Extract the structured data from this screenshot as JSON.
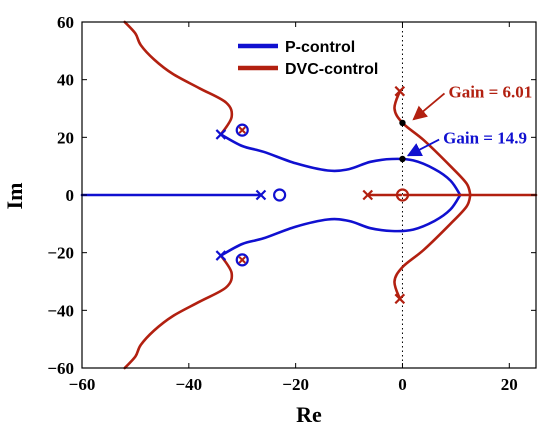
{
  "chart_data": {
    "type": "scatter",
    "xlabel": "Re",
    "ylabel": "Im",
    "xlim": [
      -60,
      25
    ],
    "ylim": [
      -60,
      60
    ],
    "xticks": [
      -60,
      -40,
      -20,
      0,
      20
    ],
    "yticks": [
      -60,
      -40,
      -20,
      0,
      20,
      40,
      60
    ],
    "tick_labels_x": [
      "−60",
      "−40",
      "−20",
      "0",
      "20"
    ],
    "tick_labels_y": [
      "−60",
      "−40",
      "−20",
      "0",
      "20",
      "40",
      "60"
    ],
    "grid": false,
    "legend_position": "top-center",
    "colors": {
      "p": "#1010d0",
      "dvc": "#b22010",
      "dots": "#000000"
    },
    "series": [
      {
        "name": "P-control",
        "color": "#1010d0",
        "branches": [
          [
            [
              -60,
              0
            ],
            [
              -26.5,
              0
            ]
          ],
          [
            [
              -34,
              21
            ],
            [
              -30,
              17
            ],
            [
              -26,
              15
            ],
            [
              -20,
              11
            ],
            [
              -14,
              8.5
            ],
            [
              -10,
              9
            ],
            [
              -6,
              11.5
            ],
            [
              -2,
              12.5
            ],
            [
              2,
              12
            ],
            [
              6,
              9
            ],
            [
              9,
              5
            ],
            [
              10.8,
              0
            ]
          ],
          [
            [
              -34,
              -21
            ],
            [
              -30,
              -17
            ],
            [
              -26,
              -15
            ],
            [
              -20,
              -11
            ],
            [
              -14,
              -8.5
            ],
            [
              -10,
              -9
            ],
            [
              -6,
              -11.5
            ],
            [
              -2,
              -12.5
            ],
            [
              2,
              -12
            ],
            [
              6,
              -9
            ],
            [
              9,
              -5
            ],
            [
              10.8,
              0
            ]
          ]
        ]
      },
      {
        "name": "DVC-control",
        "color": "#b22010",
        "branches": [
          [
            [
              -6.5,
              0
            ],
            [
              -0.3,
              0
            ]
          ],
          [
            [
              0.3,
              0
            ],
            [
              25,
              0
            ]
          ],
          [
            [
              -0.5,
              36
            ],
            [
              -1.5,
              30
            ],
            [
              0,
              25
            ],
            [
              4,
              19
            ],
            [
              9,
              10
            ],
            [
              12,
              4
            ],
            [
              12.7,
              0
            ]
          ],
          [
            [
              -0.5,
              -36
            ],
            [
              -1.5,
              -30
            ],
            [
              0,
              -25
            ],
            [
              4,
              -19
            ],
            [
              9,
              -10
            ],
            [
              12,
              -4
            ],
            [
              12.7,
              0
            ]
          ],
          [
            [
              -34,
              21
            ],
            [
              -32,
              27
            ],
            [
              -33,
              32
            ],
            [
              -38,
              37
            ],
            [
              -43,
              42
            ],
            [
              -46.5,
              47
            ],
            [
              -49,
              52
            ],
            [
              -50,
              56
            ],
            [
              -52,
              60
            ]
          ],
          [
            [
              -34,
              -21
            ],
            [
              -32,
              -27
            ],
            [
              -33,
              -32
            ],
            [
              -38,
              -37
            ],
            [
              -43,
              -42
            ],
            [
              -46.5,
              -47
            ],
            [
              -49,
              -52
            ],
            [
              -50,
              -56
            ],
            [
              -52,
              -60
            ]
          ]
        ]
      }
    ],
    "poles_p": [
      [
        -34,
        21
      ],
      [
        -34,
        -21
      ],
      [
        -26.5,
        0
      ]
    ],
    "zeros_p": [
      [
        -30,
        22.5
      ],
      [
        -30,
        -22.5
      ],
      [
        -23,
        0
      ]
    ],
    "poles_dvc": [
      [
        -0.5,
        36
      ],
      [
        -0.5,
        -36
      ],
      [
        -6.5,
        0
      ]
    ],
    "zeros_dvc": [
      [
        -30,
        22.5
      ],
      [
        -30,
        -22.5
      ],
      [
        0,
        0
      ]
    ],
    "crossing_points": [
      [
        0,
        25
      ],
      [
        0,
        12.5
      ]
    ],
    "annotations": [
      {
        "text": "Gain = 6.01",
        "color": "#b22010",
        "target": [
          1.5,
          25.5
        ]
      },
      {
        "text": "Gain = 14.9",
        "color": "#1010d0",
        "target": [
          0.5,
          13
        ]
      }
    ]
  }
}
